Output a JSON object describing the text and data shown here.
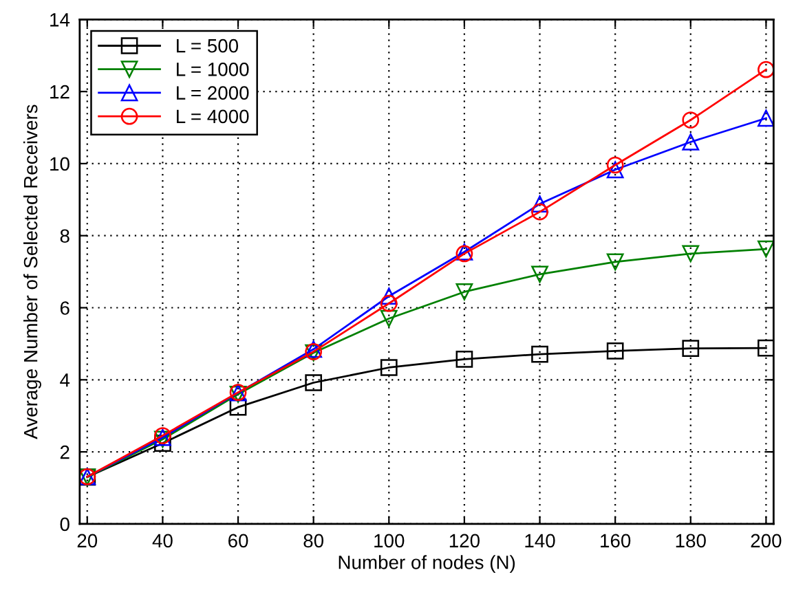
{
  "chart_data": {
    "type": "line",
    "xlabel": "Number of nodes (N)",
    "ylabel": "Average Number of Selected Receivers",
    "x": [
      20,
      40,
      60,
      80,
      100,
      120,
      140,
      160,
      180,
      200
    ],
    "series": [
      {
        "name": "L = 500",
        "color": "#000000",
        "marker": "square",
        "values": [
          1.3,
          2.24,
          3.24,
          3.92,
          4.34,
          4.57,
          4.71,
          4.8,
          4.87,
          4.88
        ]
      },
      {
        "name": "L = 1000",
        "color": "#008000",
        "marker": "triangle_down",
        "values": [
          1.3,
          2.35,
          3.6,
          4.75,
          5.7,
          6.44,
          6.93,
          7.27,
          7.5,
          7.63
        ]
      },
      {
        "name": "L = 2000",
        "color": "#0000ff",
        "marker": "triangle",
        "values": [
          1.31,
          2.4,
          3.64,
          4.85,
          6.32,
          7.55,
          8.88,
          9.83,
          10.6,
          11.26
        ]
      },
      {
        "name": "L = 4000",
        "color": "#ff0000",
        "marker": "circle",
        "values": [
          1.31,
          2.45,
          3.65,
          4.78,
          6.12,
          7.5,
          8.66,
          9.96,
          11.21,
          12.61
        ]
      }
    ],
    "xlim": [
      18,
      202
    ],
    "xticks": [
      20,
      40,
      60,
      80,
      100,
      120,
      140,
      160,
      180,
      200
    ],
    "ylim": [
      0,
      14
    ],
    "yticks": [
      0,
      2,
      4,
      6,
      8,
      10,
      12,
      14
    ],
    "grid": true,
    "legend": "top left",
    "line_style": "solid"
  }
}
